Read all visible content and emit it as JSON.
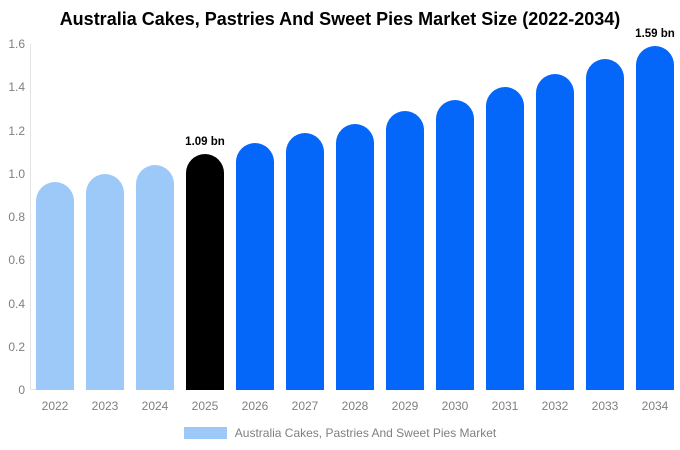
{
  "title": "Australia Cakes, Pastries And Sweet Pies Market Size (2022-2034)",
  "chart_data": {
    "type": "bar",
    "title": "Australia Cakes, Pastries And Sweet Pies Market Size (2022-2034)",
    "categories": [
      "2022",
      "2023",
      "2024",
      "2025",
      "2026",
      "2027",
      "2028",
      "2029",
      "2030",
      "2031",
      "2032",
      "2033",
      "2034"
    ],
    "values": [
      0.96,
      1.0,
      1.04,
      1.09,
      1.14,
      1.19,
      1.23,
      1.29,
      1.34,
      1.4,
      1.46,
      1.53,
      1.59
    ],
    "unit": "bn",
    "xlabel": "",
    "ylabel": "",
    "ylim": [
      0,
      1.6
    ],
    "yticks": [
      "0",
      "0.2",
      "0.4",
      "0.6",
      "0.8",
      "1.0",
      "1.2",
      "1.4",
      "1.6"
    ],
    "grid": false,
    "segments": [
      "historical",
      "historical",
      "historical",
      "current",
      "forecast",
      "forecast",
      "forecast",
      "forecast",
      "forecast",
      "forecast",
      "forecast",
      "forecast",
      "forecast"
    ],
    "colors": {
      "historical": "#9DC9F8",
      "current": "#000000",
      "forecast": "#0567FA"
    },
    "annotations": [
      {
        "category": "2025",
        "text": "1.09 bn"
      },
      {
        "category": "2034",
        "text": "1.59 bn"
      }
    ],
    "legend_position": "bottom-center",
    "legend": {
      "label": "Australia Cakes, Pastries And Sweet Pies Market",
      "swatch_color": "#9DC9F8"
    }
  }
}
